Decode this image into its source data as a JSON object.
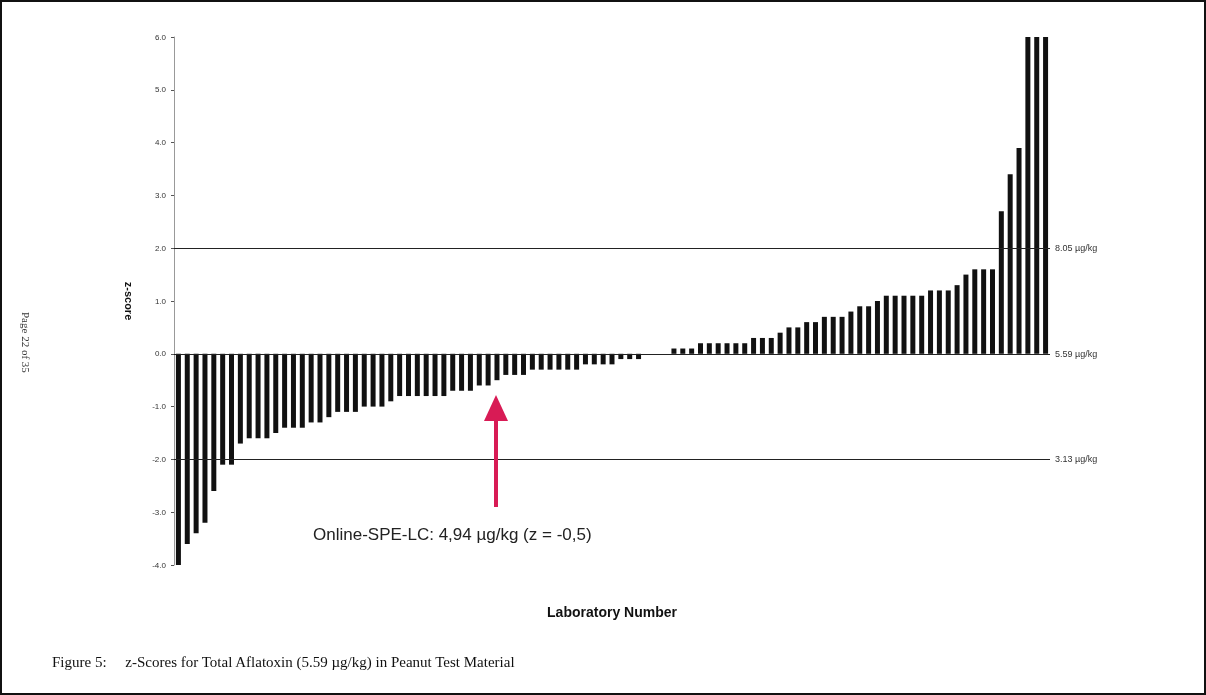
{
  "chart_data": {
    "type": "bar",
    "title": "Figure 5:     z-Scores for Total Aflatoxin (5.59 µg/kg) in Peanut Test Material",
    "xlabel": "Laboratory Number",
    "ylabel": "z-score",
    "annotations": [
      "Page 22 of 35",
      "Online-SPE-LC: 4,94 µg/kg (z = -0,5)"
    ],
    "categories": [
      null,
      null,
      null,
      null,
      null,
      null,
      null,
      null,
      null,
      null,
      null,
      null,
      null,
      null,
      null,
      null,
      null,
      null,
      null,
      null,
      null,
      null,
      null,
      null,
      null,
      null,
      null,
      null,
      null,
      null,
      null,
      null,
      null,
      null,
      null,
      null,
      null,
      null,
      null,
      null,
      null,
      null,
      null,
      null,
      null,
      null,
      null,
      null,
      null,
      null,
      null,
      null,
      null,
      null,
      null,
      null,
      null,
      null,
      null,
      null,
      null,
      null,
      null,
      null,
      null,
      null,
      null,
      null,
      null,
      null,
      null,
      null,
      null,
      null,
      null,
      null,
      null,
      null,
      null,
      null,
      null,
      null,
      null,
      null,
      null,
      null,
      null,
      null,
      null,
      null,
      null,
      null,
      null,
      null,
      null,
      null,
      null,
      null,
      null
    ],
    "values": [
      -4.0,
      -3.6,
      -3.4,
      -3.2,
      -2.6,
      -2.1,
      -2.1,
      -1.7,
      -1.6,
      -1.6,
      -1.6,
      -1.5,
      -1.4,
      -1.4,
      -1.4,
      -1.3,
      -1.3,
      -1.2,
      -1.1,
      -1.1,
      -1.1,
      -1.0,
      -1.0,
      -1.0,
      -0.9,
      -0.8,
      -0.8,
      -0.8,
      -0.8,
      -0.8,
      -0.8,
      -0.7,
      -0.7,
      -0.7,
      -0.6,
      -0.6,
      -0.5,
      -0.4,
      -0.4,
      -0.4,
      -0.3,
      -0.3,
      -0.3,
      -0.3,
      -0.3,
      -0.3,
      -0.2,
      -0.2,
      -0.2,
      -0.2,
      -0.1,
      -0.1,
      -0.1,
      0,
      0,
      0,
      0.1,
      0.1,
      0.1,
      0.2,
      0.2,
      0.2,
      0.2,
      0.2,
      0.2,
      0.3,
      0.3,
      0.3,
      0.4,
      0.5,
      0.5,
      0.6,
      0.6,
      0.7,
      0.7,
      0.7,
      0.8,
      0.9,
      0.9,
      1.0,
      1.1,
      1.1,
      1.1,
      1.1,
      1.1,
      1.2,
      1.2,
      1.2,
      1.3,
      1.5,
      1.6,
      1.6,
      1.6,
      2.7,
      3.4,
      3.9,
      6.0,
      6.0,
      6.0
    ],
    "color": "#111111",
    "ylim": [
      -4,
      6
    ],
    "yticks": [
      {
        "value": -4,
        "label": "-4.0"
      },
      {
        "value": -3,
        "label": "-3.0"
      },
      {
        "value": -2,
        "label": "-2.0"
      },
      {
        "value": -1,
        "label": "-1.0"
      },
      {
        "value": 0,
        "label": "0.0"
      },
      {
        "value": 1,
        "label": "1.0"
      },
      {
        "value": 2,
        "label": "2.0"
      },
      {
        "value": 3,
        "label": "3.0"
      },
      {
        "value": 4,
        "label": "4.0"
      },
      {
        "value": 5,
        "label": "5.0"
      },
      {
        "value": 6,
        "label": "6.0"
      }
    ],
    "tick_labels": "y",
    "ref_lines": [
      {
        "axis": "y",
        "value": 2,
        "label": "8.05 µg/kg",
        "color": "#222222"
      },
      {
        "axis": "y",
        "value": 0,
        "label": "5.59 µg/kg",
        "color": "#222222"
      },
      {
        "axis": "y",
        "value": -2,
        "label": "3.13 µg/kg",
        "color": "#222222"
      }
    ]
  }
}
